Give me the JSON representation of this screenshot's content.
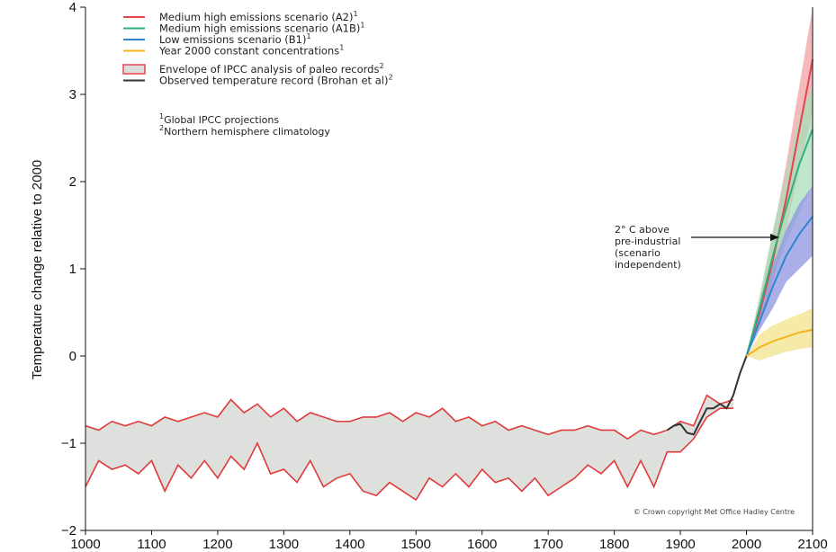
{
  "chart_data": {
    "type": "line",
    "ylabel": "Temperature change relative to 2000",
    "xlabel": "",
    "xlim": [
      1000,
      2100
    ],
    "ylim": [
      -2,
      4
    ],
    "x_ticks": [
      1000,
      1100,
      1200,
      1300,
      1400,
      1500,
      1600,
      1700,
      1800,
      1900,
      2000,
      2100
    ],
    "y_ticks": [
      4,
      3,
      2,
      1,
      0,
      -1,
      -2
    ],
    "y_tick_labels": [
      "4",
      "3",
      "2",
      "1",
      "0",
      "−1",
      "−2"
    ],
    "grid": false,
    "legend_position": "top-left",
    "legend": [
      {
        "label": "Medium high emissions scenario (A2)",
        "sup": "1",
        "color": "#e8434a",
        "kind": "line"
      },
      {
        "label": "Medium high emissions scenario (A1B)",
        "sup": "1",
        "color": "#2fb27a",
        "kind": "line"
      },
      {
        "label": "Low emissions scenario (B1)",
        "sup": "1",
        "color": "#2f86d0",
        "kind": "line"
      },
      {
        "label": "Year 2000 constant concentrations",
        "sup": "1",
        "color": "#f5b41e",
        "kind": "line"
      },
      {
        "label": "Envelope of IPCC analysis of paleo records",
        "sup": "2",
        "color": "#e8434a",
        "fill": "#dcdcdc",
        "kind": "box"
      },
      {
        "label": "Observed temperature record (Brohan et al)",
        "sup": "2",
        "color": "#333333",
        "kind": "line"
      }
    ],
    "footnotes": [
      {
        "sup": "1",
        "text": "Global IPCC projections"
      },
      {
        "sup": "2",
        "text": "Northern hemisphere climatology"
      }
    ],
    "annotation": {
      "lines": [
        "2° C above",
        "pre-industrial",
        "(scenario",
        "independent)"
      ],
      "points_to": [
        2085,
        1.3
      ]
    },
    "copyright": "© Crown copyright Met Office Hadley Centre",
    "paleo_envelope": {
      "x": [
        1000,
        1020,
        1040,
        1060,
        1080,
        1100,
        1120,
        1140,
        1160,
        1180,
        1200,
        1220,
        1240,
        1260,
        1280,
        1300,
        1320,
        1340,
        1360,
        1380,
        1400,
        1420,
        1440,
        1460,
        1480,
        1500,
        1520,
        1540,
        1560,
        1580,
        1600,
        1620,
        1640,
        1660,
        1680,
        1700,
        1720,
        1740,
        1760,
        1780,
        1800,
        1820,
        1840,
        1860,
        1880,
        1900,
        1920,
        1940,
        1960,
        1980
      ],
      "upper": [
        -0.8,
        -0.85,
        -0.75,
        -0.8,
        -0.75,
        -0.8,
        -0.7,
        -0.75,
        -0.7,
        -0.65,
        -0.7,
        -0.5,
        -0.65,
        -0.55,
        -0.7,
        -0.6,
        -0.75,
        -0.65,
        -0.7,
        -0.75,
        -0.75,
        -0.7,
        -0.7,
        -0.65,
        -0.75,
        -0.65,
        -0.7,
        -0.6,
        -0.75,
        -0.7,
        -0.8,
        -0.75,
        -0.85,
        -0.8,
        -0.85,
        -0.9,
        -0.85,
        -0.85,
        -0.8,
        -0.85,
        -0.85,
        -0.95,
        -0.85,
        -0.9,
        -0.85,
        -0.75,
        -0.8,
        -0.45,
        -0.55,
        -0.5
      ],
      "lower": [
        -1.5,
        -1.2,
        -1.3,
        -1.25,
        -1.35,
        -1.2,
        -1.55,
        -1.25,
        -1.4,
        -1.2,
        -1.4,
        -1.15,
        -1.3,
        -1.0,
        -1.35,
        -1.3,
        -1.45,
        -1.2,
        -1.5,
        -1.4,
        -1.35,
        -1.55,
        -1.6,
        -1.45,
        -1.55,
        -1.65,
        -1.4,
        -1.5,
        -1.35,
        -1.5,
        -1.3,
        -1.45,
        -1.4,
        -1.55,
        -1.4,
        -1.6,
        -1.5,
        -1.4,
        -1.25,
        -1.35,
        -1.2,
        -1.5,
        -1.2,
        -1.5,
        -1.1,
        -1.1,
        -0.95,
        -0.7,
        -0.6,
        -0.6
      ]
    },
    "series": [
      {
        "name": "Observed temperature record (Brohan et al)",
        "color": "#333333",
        "x": [
          1880,
          1890,
          1900,
          1910,
          1920,
          1930,
          1940,
          1950,
          1960,
          1970,
          1980,
          1990,
          2000
        ],
        "values": [
          -0.85,
          -0.8,
          -0.78,
          -0.88,
          -0.9,
          -0.75,
          -0.6,
          -0.6,
          -0.55,
          -0.6,
          -0.45,
          -0.2,
          0.0
        ]
      },
      {
        "name": "Medium high emissions scenario (A2)",
        "color": "#e8434a",
        "x": [
          2000,
          2020,
          2040,
          2060,
          2080,
          2100
        ],
        "values": [
          0.0,
          0.5,
          1.1,
          1.8,
          2.6,
          3.4
        ],
        "band_lower": [
          0.0,
          0.35,
          0.85,
          1.45,
          2.15,
          2.8
        ],
        "band_upper": [
          0.0,
          0.65,
          1.4,
          2.2,
          3.1,
          4.0
        ],
        "band_color": "#f2a0a4"
      },
      {
        "name": "Medium high emissions scenario (A1B)",
        "color": "#2fb27a",
        "x": [
          2000,
          2020,
          2040,
          2060,
          2080,
          2100
        ],
        "values": [
          0.0,
          0.55,
          1.15,
          1.7,
          2.2,
          2.6
        ],
        "band_lower": [
          0.0,
          0.4,
          0.9,
          1.3,
          1.65,
          1.95
        ],
        "band_upper": [
          0.0,
          0.7,
          1.45,
          2.1,
          2.75,
          3.1
        ],
        "band_color": "#a8ddb9"
      },
      {
        "name": "Low emissions scenario (B1)",
        "color": "#2f86d0",
        "x": [
          2000,
          2020,
          2040,
          2060,
          2080,
          2100
        ],
        "values": [
          0.0,
          0.4,
          0.8,
          1.15,
          1.4,
          1.6
        ],
        "band_lower": [
          0.0,
          0.3,
          0.55,
          0.85,
          1.0,
          1.15
        ],
        "band_upper": [
          0.0,
          0.55,
          1.05,
          1.45,
          1.75,
          1.95
        ],
        "band_color": "#8e94e0"
      },
      {
        "name": "Year 2000 constant concentrations",
        "color": "#f5b41e",
        "x": [
          2000,
          2020,
          2040,
          2060,
          2080,
          2100
        ],
        "values": [
          0.0,
          0.1,
          0.17,
          0.22,
          0.27,
          0.3
        ],
        "band_lower": [
          0.0,
          -0.05,
          0.0,
          0.05,
          0.08,
          0.1
        ],
        "band_upper": [
          0.0,
          0.25,
          0.35,
          0.42,
          0.48,
          0.55
        ],
        "band_color": "#f3e38c"
      }
    ]
  }
}
